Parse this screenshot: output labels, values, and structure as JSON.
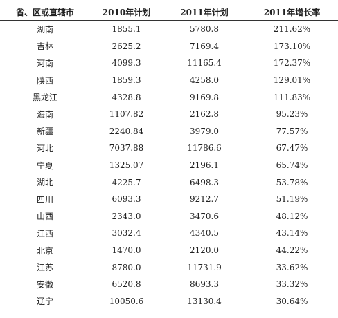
{
  "table": {
    "header": [
      "省、区或直辖市",
      "2010年计划",
      "2011年计划",
      "2011年增长率"
    ],
    "rows": [
      [
        "湖南",
        "1855.1",
        "5780.8",
        "211.62%"
      ],
      [
        "吉林",
        "2625.2",
        "7169.4",
        "173.10%"
      ],
      [
        "河南",
        "4099.3",
        "11165.4",
        "172.37%"
      ],
      [
        "陕西",
        "1859.3",
        "4258.0",
        "129.01%"
      ],
      [
        "黑龙江",
        "4328.8",
        "9169.8",
        "111.83%"
      ],
      [
        "海南",
        "1107.82",
        "2162.8",
        "95.23%"
      ],
      [
        "新疆",
        "2240.84",
        "3979.0",
        "77.57%"
      ],
      [
        "河北",
        "7037.88",
        "11786.6",
        "67.47%"
      ],
      [
        "宁夏",
        "1325.07",
        "2196.1",
        "65.74%"
      ],
      [
        "湖北",
        "4225.7",
        "6498.3",
        "53.78%"
      ],
      [
        "四川",
        "6093.3",
        "9212.7",
        "51.19%"
      ],
      [
        "山西",
        "2343.0",
        "3470.6",
        "48.12%"
      ],
      [
        "江西",
        "3032.4",
        "4340.5",
        "43.14%"
      ],
      [
        "北京",
        "1470.0",
        "2120.0",
        "44.22%"
      ],
      [
        "江苏",
        "8780.0",
        "11731.9",
        "33.62%"
      ],
      [
        "安徽",
        "6520.8",
        "8693.3",
        "33.32%"
      ],
      [
        "辽宁",
        "10050.6",
        "13130.4",
        "30.64%"
      ]
    ]
  }
}
